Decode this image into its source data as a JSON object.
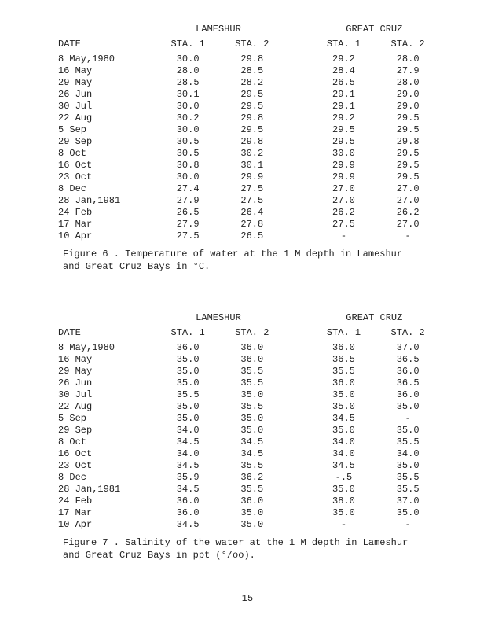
{
  "tempTable": {
    "groupHeaders": [
      "LAMESHUR",
      "GREAT CRUZ"
    ],
    "colHeaders": {
      "date": "DATE",
      "s1": "STA. 1",
      "s2": "STA. 2",
      "s3": "STA. 1",
      "s4": "STA. 2"
    },
    "rows": [
      {
        "date": "8 May,1980",
        "s1": "30.0",
        "s2": "29.8",
        "s3": "29.2",
        "s4": "28.0"
      },
      {
        "date": "16 May",
        "s1": "28.0",
        "s2": "28.5",
        "s3": "28.4",
        "s4": "27.9"
      },
      {
        "date": "29 May",
        "s1": "28.5",
        "s2": "28.2",
        "s3": "26.5",
        "s4": "28.0"
      },
      {
        "date": "26 Jun",
        "s1": "30.1",
        "s2": "29.5",
        "s3": "29.1",
        "s4": "29.0"
      },
      {
        "date": "30 Jul",
        "s1": "30.0",
        "s2": "29.5",
        "s3": "29.1",
        "s4": "29.0"
      },
      {
        "date": "22 Aug",
        "s1": "30.2",
        "s2": "29.8",
        "s3": "29.2",
        "s4": "29.5"
      },
      {
        "date": "5 Sep",
        "s1": "30.0",
        "s2": "29.5",
        "s3": "29.5",
        "s4": "29.5"
      },
      {
        "date": "29 Sep",
        "s1": "30.5",
        "s2": "29.8",
        "s3": "29.5",
        "s4": "29.8"
      },
      {
        "date": "8 Oct",
        "s1": "30.5",
        "s2": "30.2",
        "s3": "30.0",
        "s4": "29.5"
      },
      {
        "date": "16 Oct",
        "s1": "30.8",
        "s2": "30.1",
        "s3": "29.9",
        "s4": "29.5"
      },
      {
        "date": "23 Oct",
        "s1": "30.0",
        "s2": "29.9",
        "s3": "29.9",
        "s4": "29.5"
      },
      {
        "date": "8 Dec",
        "s1": "27.4",
        "s2": "27.5",
        "s3": "27.0",
        "s4": "27.0"
      },
      {
        "date": "28 Jan,1981",
        "s1": "27.9",
        "s2": "27.5",
        "s3": "27.0",
        "s4": "27.0"
      },
      {
        "date": "24 Feb",
        "s1": "26.5",
        "s2": "26.4",
        "s3": "26.2",
        "s4": "26.2"
      },
      {
        "date": "17 Mar",
        "s1": "27.9",
        "s2": "27.8",
        "s3": "27.5",
        "s4": "27.0"
      },
      {
        "date": "10 Apr",
        "s1": "27.5",
        "s2": "26.5",
        "s3": "-",
        "s4": "-"
      }
    ],
    "caption": "Figure 6 .  Temperature of water at the 1 M depth in Lameshur and Great Cruz Bays in °C."
  },
  "salTable": {
    "groupHeaders": [
      "LAMESHUR",
      "GREAT CRUZ"
    ],
    "colHeaders": {
      "date": "DATE",
      "s1": "STA. 1",
      "s2": "STA. 2",
      "s3": "STA. 1",
      "s4": "STA. 2"
    },
    "rows": [
      {
        "date": "8 May,1980",
        "s1": "36.0",
        "s2": "36.0",
        "s3": "36.0",
        "s4": "37.0"
      },
      {
        "date": "16 May",
        "s1": "35.0",
        "s2": "36.0",
        "s3": "36.5",
        "s4": "36.5"
      },
      {
        "date": "29 May",
        "s1": "35.0",
        "s2": "35.5",
        "s3": "35.5",
        "s4": "36.0"
      },
      {
        "date": "26 Jun",
        "s1": "35.0",
        "s2": "35.5",
        "s3": "36.0",
        "s4": "36.5"
      },
      {
        "date": "30 Jul",
        "s1": "35.5",
        "s2": "35.0",
        "s3": "35.0",
        "s4": "36.0"
      },
      {
        "date": "22 Aug",
        "s1": "35.0",
        "s2": "35.5",
        "s3": "35.0",
        "s4": "35.0"
      },
      {
        "date": "5 Sep",
        "s1": "35.0",
        "s2": "35.0",
        "s3": "34.5",
        "s4": "-"
      },
      {
        "date": "29 Sep",
        "s1": "34.0",
        "s2": "35.0",
        "s3": "35.0",
        "s4": "35.0"
      },
      {
        "date": "8 Oct",
        "s1": "34.5",
        "s2": "34.5",
        "s3": "34.0",
        "s4": "35.5"
      },
      {
        "date": "16 Oct",
        "s1": "34.0",
        "s2": "34.5",
        "s3": "34.0",
        "s4": "34.0"
      },
      {
        "date": "23 Oct",
        "s1": "34.5",
        "s2": "35.5",
        "s3": "34.5",
        "s4": "35.0"
      },
      {
        "date": "8 Dec",
        "s1": "35.9",
        "s2": "36.2",
        "s3": "-.5",
        "s4": "35.5"
      },
      {
        "date": "28 Jan,1981",
        "s1": "34.5",
        "s2": "35.5",
        "s3": "35.0",
        "s4": "35.5"
      },
      {
        "date": "24 Feb",
        "s1": "36.0",
        "s2": "36.0",
        "s3": "38.0",
        "s4": "37.0"
      },
      {
        "date": "17 Mar",
        "s1": "36.0",
        "s2": "35.0",
        "s3": "35.0",
        "s4": "35.0"
      },
      {
        "date": "10 Apr",
        "s1": "34.5",
        "s2": "35.0",
        "s3": "-",
        "s4": "-"
      }
    ],
    "caption": "Figure 7 .  Salinity of the water at the 1 M depth in Lameshur and Great Cruz Bays in ppt (°/oo)."
  },
  "pageNumber": "15"
}
